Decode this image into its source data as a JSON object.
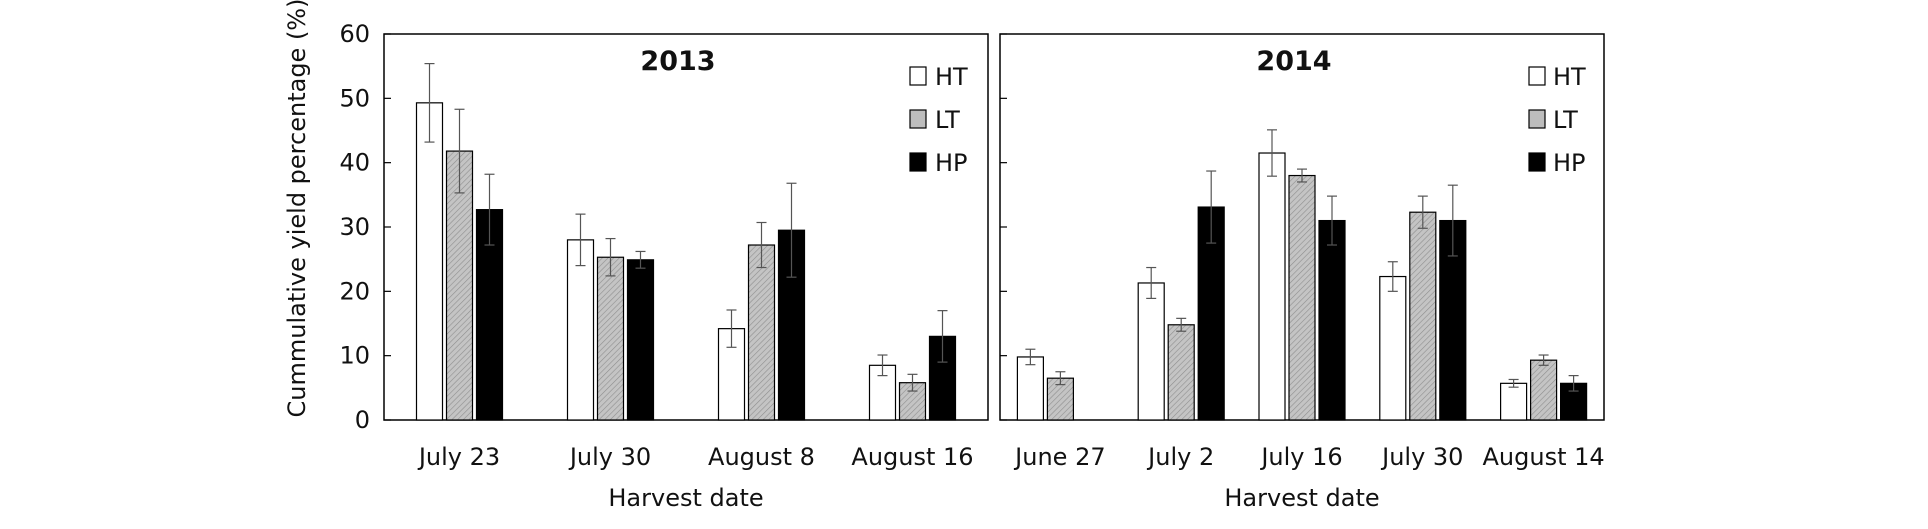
{
  "y_axis_label": "Cummulative yield percentage (%)",
  "y_ticks": [
    "0",
    "10",
    "20",
    "30",
    "40",
    "50",
    "60"
  ],
  "series_colors": {
    "HT": "#ffffff",
    "LT": "#bdbdbd",
    "HP": "#000000"
  },
  "chart_data": [
    {
      "type": "bar",
      "title": "2013",
      "xlabel": "Harvest date",
      "ylabel": "Cummulative yield percentage (%)",
      "ylim": [
        0,
        60
      ],
      "grid": false,
      "legend_position": "top-right",
      "categories": [
        "July 23",
        "July 30",
        "August 8",
        "August 16"
      ],
      "series": [
        {
          "name": "HT",
          "values": [
            49.3,
            28.0,
            14.2,
            8.5
          ],
          "errors": [
            6.1,
            4.0,
            2.9,
            1.6
          ]
        },
        {
          "name": "LT",
          "values": [
            41.8,
            25.3,
            27.2,
            5.8
          ],
          "errors": [
            6.5,
            2.9,
            3.5,
            1.3
          ]
        },
        {
          "name": "HP",
          "values": [
            32.7,
            24.9,
            29.5,
            13.0
          ],
          "errors": [
            5.5,
            1.3,
            7.3,
            4.0
          ]
        }
      ]
    },
    {
      "type": "bar",
      "title": "2014",
      "xlabel": "Harvest date",
      "ylabel": "Cummulative yield percentage (%)",
      "ylim": [
        0,
        60
      ],
      "grid": false,
      "legend_position": "top-right",
      "categories": [
        "June 27",
        "July 2",
        "July 16",
        "July 30",
        "August 14"
      ],
      "series": [
        {
          "name": "HT",
          "values": [
            9.8,
            21.3,
            41.5,
            22.3,
            5.7
          ],
          "errors": [
            1.2,
            2.4,
            3.6,
            2.3,
            0.6
          ]
        },
        {
          "name": "LT",
          "values": [
            6.5,
            14.8,
            38.0,
            32.3,
            9.3
          ],
          "errors": [
            1.0,
            1.0,
            1.0,
            2.5,
            0.8
          ]
        },
        {
          "name": "HP",
          "values": [
            null,
            33.1,
            31.0,
            31.0,
            5.7
          ],
          "errors": [
            null,
            5.6,
            3.8,
            5.5,
            1.2
          ]
        }
      ]
    }
  ]
}
